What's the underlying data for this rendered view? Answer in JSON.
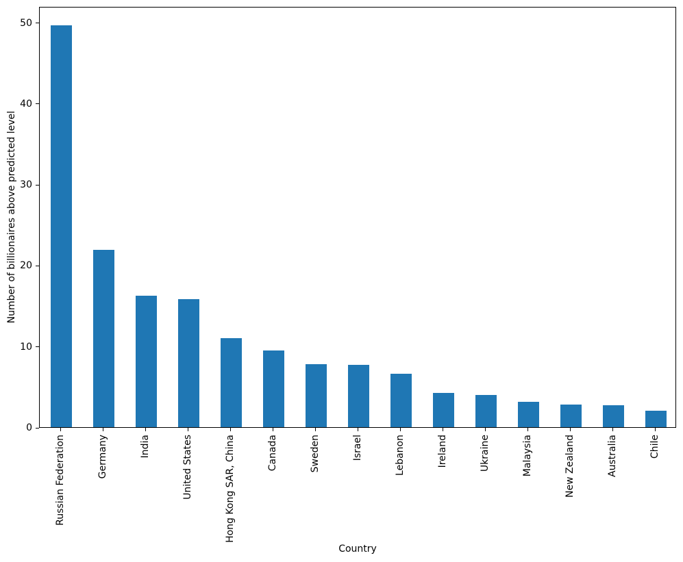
{
  "chart_data": {
    "type": "bar",
    "title": "",
    "xlabel": "Country",
    "ylabel": "Number of billionaires above predicted level",
    "categories": [
      "Russian Federation",
      "Germany",
      "India",
      "United States",
      "Hong Kong SAR, China",
      "Canada",
      "Sweden",
      "Israel",
      "Lebanon",
      "Ireland",
      "Ukraine",
      "Malaysia",
      "New Zealand",
      "Australia",
      "Chile"
    ],
    "values": [
      49.6,
      21.9,
      16.2,
      15.8,
      11.0,
      9.5,
      7.8,
      7.7,
      6.6,
      4.2,
      4.0,
      3.1,
      2.8,
      2.7,
      2.0
    ],
    "ylim": [
      0,
      52
    ],
    "yticks": [
      0,
      10,
      20,
      30,
      40,
      50
    ],
    "bar_color": "#1f77b4",
    "bar_width_fraction": 0.5,
    "tick_label_rotation": 90,
    "grid": false,
    "legend_position": "none"
  }
}
